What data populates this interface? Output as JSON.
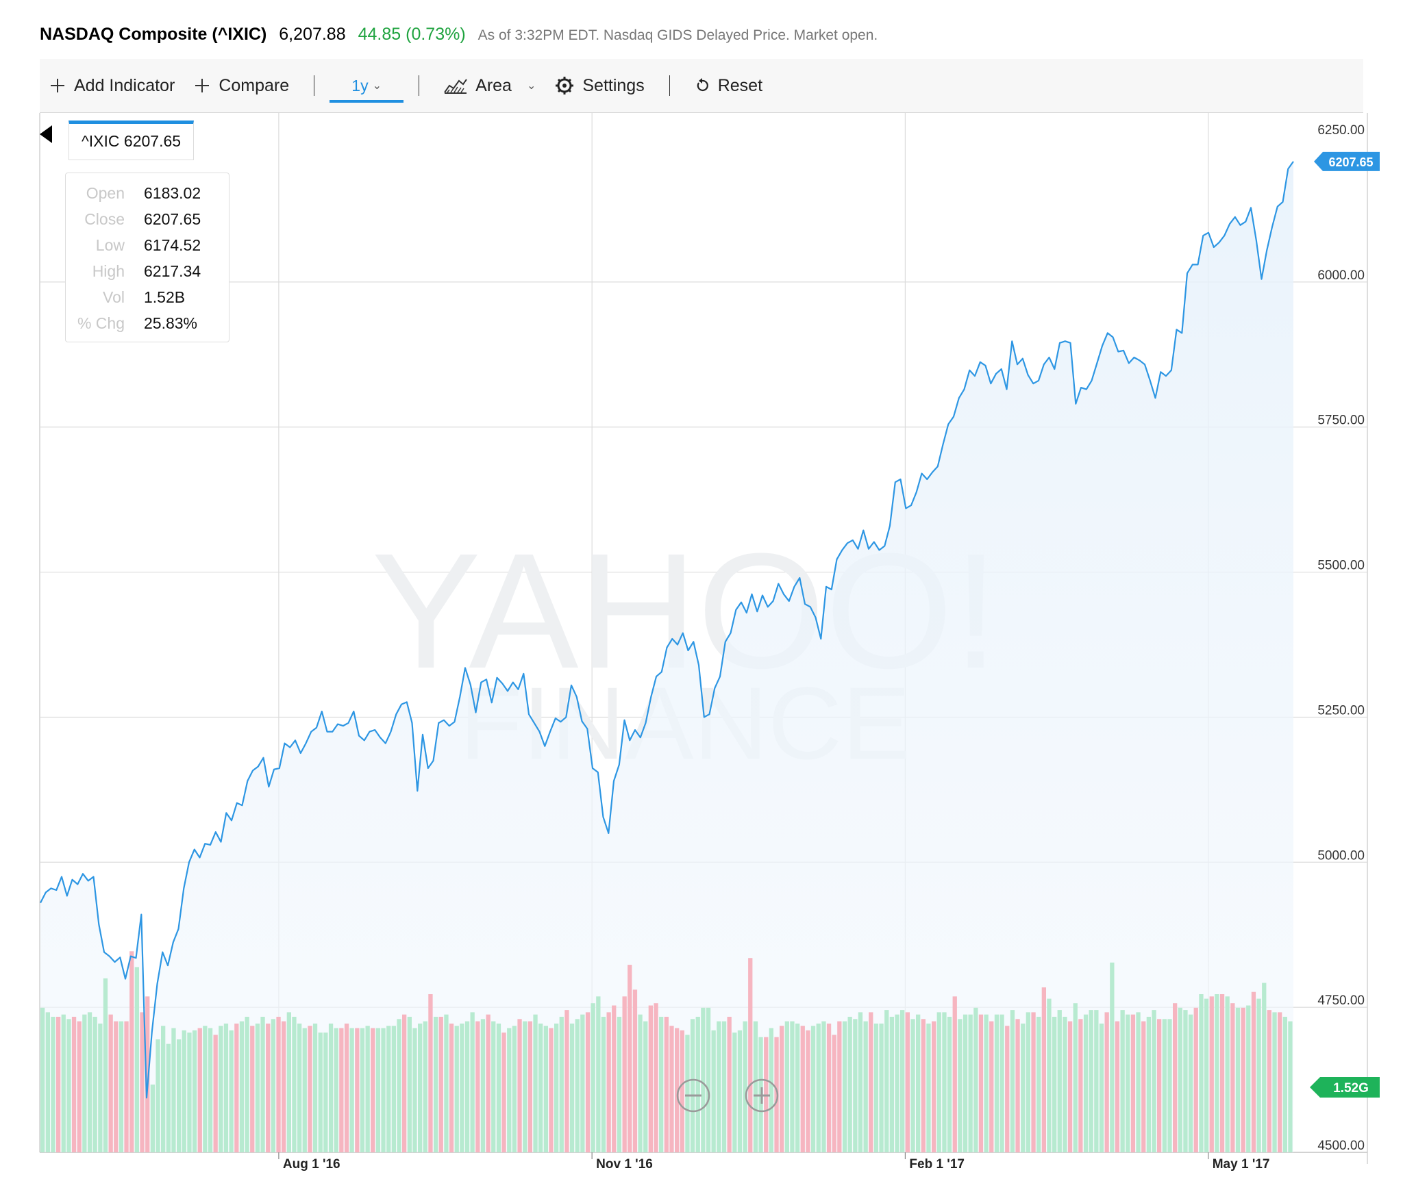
{
  "header": {
    "title": "NASDAQ Composite (^IXIC)",
    "price": "6,207.88",
    "change": "44.85 (0.73%)",
    "note": "As of 3:32PM EDT. Nasdaq GIDS Delayed Price. Market open."
  },
  "toolbar": {
    "add_indicator": "Add Indicator",
    "compare": "Compare",
    "range": "1y",
    "chart_type": "Area",
    "settings": "Settings",
    "reset": "Reset"
  },
  "tooltip": {
    "label": "^IXIC 6207.65",
    "rows": [
      {
        "label": "Open",
        "value": "6183.02"
      },
      {
        "label": "Close",
        "value": "6207.65"
      },
      {
        "label": "Low",
        "value": "6174.52"
      },
      {
        "label": "High",
        "value": "6217.34"
      },
      {
        "label": "Vol",
        "value": "1.52B"
      },
      {
        "label": "% Chg",
        "value": "25.83%"
      }
    ]
  },
  "watermark": {
    "line1": "YAHOO!",
    "line2": "FINANCE"
  },
  "colors": {
    "line": "#2d96e3",
    "up_volume": "#b7ead0",
    "down_volume": "#f6b5c0",
    "volume_badge": "#1eb35a",
    "price_badge": "#2d96e3"
  },
  "chart_data": {
    "type": "area",
    "title": "NASDAQ Composite (^IXIC)",
    "ylim": [
      4500,
      6250
    ],
    "yticks": [
      "6250.00",
      "6000.00",
      "5750.00",
      "5500.00",
      "5250.00",
      "5000.00",
      "4750.00",
      "4500.00"
    ],
    "xticks": [
      {
        "label": "Aug 1 '16",
        "date": "2016-08-01"
      },
      {
        "label": "Nov 1 '16",
        "date": "2016-11-01"
      },
      {
        "label": "Feb 1 '17",
        "date": "2017-02-01"
      },
      {
        "label": "May 1 '17",
        "date": "2017-05-01"
      }
    ],
    "x_range": [
      "2016-05-23",
      "2017-05-26"
    ],
    "series": [
      {
        "values": [
          [
            4930,
            4948,
            4955,
            4952,
            4975,
            4942,
            4970,
            4962,
            4980,
            4968,
            4975,
            4893,
            4845,
            4838,
            4828,
            4836,
            4799,
            4838,
            4835,
            4910,
            4594,
            4708,
            4790,
            4845,
            4822,
            4862,
            4885,
            4955,
            5000,
            5022,
            5008,
            5032,
            5030,
            5052,
            5035,
            5085,
            5072,
            5102,
            5098,
            5140,
            5158,
            5165,
            5180,
            5130,
            5160,
            5162,
            5205,
            5198,
            5210,
            5188,
            5205,
            5225,
            5232,
            5260,
            5225,
            5225,
            5238,
            5235,
            5240,
            5260,
            5218,
            5210,
            5225,
            5228,
            5215,
            5205,
            5225,
            5255,
            5272,
            5276,
            5240,
            5123,
            5220,
            5162,
            5175,
            5240,
            5245,
            5235,
            5242,
            5285,
            5335,
            5306,
            5258,
            5310,
            5315,
            5275,
            5318,
            5308,
            5295,
            5310,
            5298,
            5325,
            5255,
            5240,
            5225,
            5200,
            5225,
            5248,
            5242,
            5250,
            5305,
            5285,
            5243,
            5230,
            5162,
            5155,
            5078,
            5050,
            5140,
            5168,
            5245,
            5210,
            5228,
            5215,
            5240,
            5285,
            5320,
            5328,
            5370,
            5385,
            5375,
            5395,
            5365,
            5380,
            5340,
            5250,
            5255,
            5300,
            5320,
            5380,
            5395,
            5435,
            5448,
            5430,
            5462,
            5432,
            5460,
            5440,
            5450,
            5480,
            5462,
            5450,
            5475,
            5490,
            5445,
            5440,
            5422,
            5385,
            5475,
            5470,
            5522,
            5538,
            5550,
            5555,
            5540,
            5572,
            5540,
            5552,
            5538,
            5545,
            5580,
            5655,
            5660,
            5610,
            5615,
            5638,
            5670,
            5660,
            5672,
            5682,
            5720,
            5755,
            5768,
            5800,
            5815,
            5848,
            5838,
            5862,
            5856,
            5825,
            5842,
            5850,
            5815,
            5898,
            5858,
            5868,
            5840,
            5825,
            5830,
            5858,
            5870,
            5850,
            5895,
            5898,
            5895,
            5790,
            5818,
            5815,
            5830,
            5860,
            5890,
            5912,
            5905,
            5880,
            5882,
            5860,
            5870,
            5865,
            5858,
            5830,
            5800,
            5845,
            5838,
            5848,
            5918,
            5912,
            6015,
            6030,
            6030,
            6080,
            6085,
            6060,
            6068,
            6080,
            6100,
            6112,
            6098,
            6104,
            6128,
            6072,
            6005,
            6055,
            6095,
            6130,
            6138,
            6195,
            6207.65
          ]
        ]
      }
    ],
    "volume": {
      "axis_badge": "1.52G",
      "values": [
        0.64,
        0.62,
        0.6,
        0.6,
        0.61,
        0.59,
        0.6,
        0.58,
        0.61,
        0.62,
        0.6,
        0.57,
        0.77,
        0.61,
        0.58,
        0.58,
        0.58,
        0.89,
        0.82,
        0.62,
        0.69,
        0.3,
        0.5,
        0.56,
        0.48,
        0.55,
        0.5,
        0.54,
        0.53,
        0.54,
        0.55,
        0.56,
        0.55,
        0.52,
        0.56,
        0.57,
        0.54,
        0.57,
        0.58,
        0.6,
        0.56,
        0.57,
        0.6,
        0.57,
        0.59,
        0.6,
        0.58,
        0.62,
        0.6,
        0.57,
        0.55,
        0.56,
        0.57,
        0.53,
        0.53,
        0.57,
        0.55,
        0.55,
        0.57,
        0.55,
        0.55,
        0.55,
        0.56,
        0.55,
        0.55,
        0.55,
        0.56,
        0.56,
        0.59,
        0.61,
        0.6,
        0.55,
        0.57,
        0.58,
        0.7,
        0.6,
        0.6,
        0.61,
        0.57,
        0.56,
        0.57,
        0.58,
        0.62,
        0.58,
        0.59,
        0.61,
        0.58,
        0.57,
        0.53,
        0.55,
        0.56,
        0.59,
        0.58,
        0.58,
        0.61,
        0.57,
        0.56,
        0.55,
        0.57,
        0.6,
        0.63,
        0.57,
        0.59,
        0.61,
        0.62,
        0.66,
        0.69,
        0.6,
        0.62,
        0.65,
        0.6,
        0.69,
        0.83,
        0.72,
        0.61,
        0.58,
        0.65,
        0.66,
        0.6,
        0.6,
        0.56,
        0.55,
        0.54,
        0.52,
        0.59,
        0.6,
        0.64,
        0.64,
        0.54,
        0.58,
        0.58,
        0.6,
        0.53,
        0.54,
        0.58,
        0.86,
        0.58,
        0.51,
        0.51,
        0.55,
        0.51,
        0.56,
        0.58,
        0.58,
        0.57,
        0.56,
        0.54,
        0.56,
        0.57,
        0.58,
        0.57,
        0.52,
        0.58,
        0.58,
        0.6,
        0.59,
        0.62,
        0.58,
        0.62,
        0.57,
        0.57,
        0.63,
        0.6,
        0.61,
        0.63,
        0.62,
        0.59,
        0.61,
        0.59,
        0.57,
        0.58,
        0.62,
        0.62,
        0.6,
        0.69,
        0.59,
        0.61,
        0.61,
        0.64,
        0.61,
        0.61,
        0.58,
        0.61,
        0.61,
        0.56,
        0.63,
        0.59,
        0.57,
        0.62,
        0.62,
        0.6,
        0.73,
        0.68,
        0.6,
        0.63,
        0.6,
        0.58,
        0.66,
        0.59,
        0.61,
        0.63,
        0.63,
        0.57,
        0.62,
        0.84,
        0.58,
        0.63,
        0.61,
        0.61,
        0.62,
        0.58,
        0.6,
        0.63,
        0.59,
        0.59,
        0.59,
        0.66,
        0.64,
        0.63,
        0.61,
        0.64,
        0.7,
        0.68,
        0.69,
        0.7,
        0.7,
        0.69,
        0.66,
        0.64,
        0.64,
        0.65,
        0.71,
        0.68,
        0.75,
        0.63,
        0.62,
        0.62,
        0.6,
        0.58
      ],
      "down_days": [
        3,
        6,
        7,
        13,
        14,
        16,
        17,
        19,
        20,
        30,
        33,
        37,
        40,
        43,
        45,
        46,
        51,
        57,
        58,
        60,
        63,
        69,
        74,
        76,
        78,
        83,
        85,
        88,
        91,
        93,
        97,
        100,
        104,
        108,
        109,
        111,
        112,
        113,
        116,
        117,
        119,
        120,
        121,
        122,
        131,
        135,
        138,
        140,
        141,
        145,
        146,
        150,
        151,
        152,
        158,
        165,
        168,
        170,
        174,
        179,
        181,
        184,
        186,
        189,
        191,
        196,
        198,
        203,
        205,
        208,
        210,
        213,
        216,
        220,
        223,
        225,
        227,
        229,
        231,
        234,
        236,
        240,
        242,
        243,
        247,
        250,
        251
      ]
    }
  }
}
